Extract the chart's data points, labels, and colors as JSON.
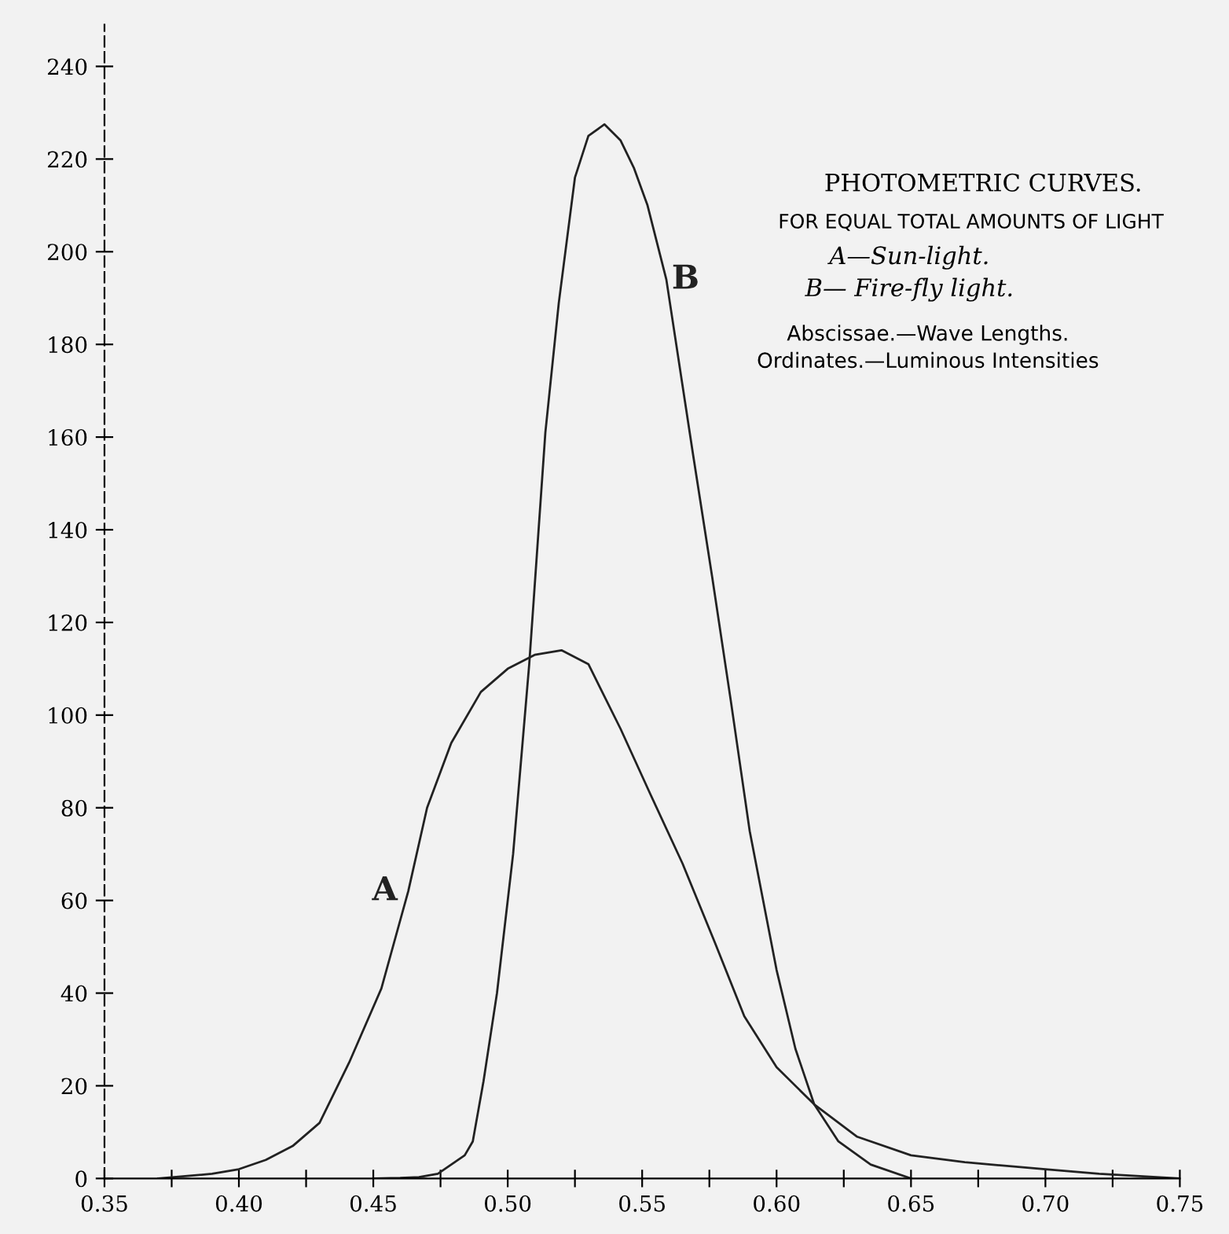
{
  "chart_data": {
    "type": "line",
    "title": "PHOTOMETRIC CURVES.",
    "subtitle": "FOR EQUAL TOTAL AMOUNTS OF LIGHT",
    "annotations": [
      "A—Sun-light.",
      "B— Fire-fly light.",
      "Abscissae.—Wave Lengths.",
      "Ordinates.—Luminous Intensities"
    ],
    "series": [
      {
        "name": "A",
        "color": "#222222",
        "x": [
          0.37,
          0.38,
          0.39,
          0.4,
          0.41,
          0.42,
          0.43,
          0.441,
          0.453,
          0.463,
          0.47,
          0.479,
          0.49,
          0.5,
          0.51,
          0.52,
          0.53,
          0.542,
          0.553,
          0.565,
          0.577,
          0.588,
          0.6,
          0.614,
          0.63,
          0.65,
          0.67,
          0.7,
          0.72,
          0.75
        ],
        "values": [
          0,
          0.5,
          1,
          2,
          4,
          7,
          12,
          25,
          41,
          62,
          80,
          94,
          105,
          110,
          113,
          114,
          111,
          97,
          83,
          68,
          51,
          35,
          24,
          16,
          9,
          5,
          3.5,
          2,
          1,
          0
        ]
      },
      {
        "name": "B",
        "color": "#222222",
        "x": [
          0.45,
          0.46,
          0.467,
          0.474,
          0.479,
          0.484,
          0.487,
          0.491,
          0.496,
          0.502,
          0.508,
          0.514,
          0.519,
          0.525,
          0.53,
          0.536,
          0.542,
          0.547,
          0.552,
          0.559,
          0.569,
          0.576,
          0.583,
          0.59,
          0.6,
          0.607,
          0.614,
          0.623,
          0.635,
          0.65
        ],
        "values": [
          0,
          0.1,
          0.3,
          1,
          3,
          5,
          8,
          21,
          40,
          70,
          111,
          161,
          189,
          216,
          225,
          227.5,
          224,
          218,
          210,
          194,
          156,
          130,
          103,
          75,
          45,
          28,
          16,
          8,
          3,
          0
        ]
      }
    ],
    "xlim": [
      0.35,
      0.75
    ],
    "ylim": [
      0,
      249
    ],
    "xticks": [
      {
        "value": 0.35,
        "label": "0.35"
      },
      {
        "value": 0.375,
        "label": null
      },
      {
        "value": 0.4,
        "label": "0.40"
      },
      {
        "value": 0.425,
        "label": null
      },
      {
        "value": 0.45,
        "label": "0.45"
      },
      {
        "value": 0.475,
        "label": null
      },
      {
        "value": 0.5,
        "label": "0.50"
      },
      {
        "value": 0.525,
        "label": null
      },
      {
        "value": 0.55,
        "label": "0.55"
      },
      {
        "value": 0.575,
        "label": null
      },
      {
        "value": 0.6,
        "label": "0.60"
      },
      {
        "value": 0.625,
        "label": null
      },
      {
        "value": 0.65,
        "label": "0.65"
      },
      {
        "value": 0.675,
        "label": null
      },
      {
        "value": 0.7,
        "label": "0.70"
      },
      {
        "value": 0.725,
        "label": null
      },
      {
        "value": 0.75,
        "label": "0.75"
      }
    ],
    "yticks": [
      0,
      20,
      40,
      60,
      80,
      100,
      120,
      140,
      160,
      180,
      200,
      220,
      240
    ],
    "grid": false,
    "legend": false,
    "marker": "none",
    "line_style": "solid"
  }
}
